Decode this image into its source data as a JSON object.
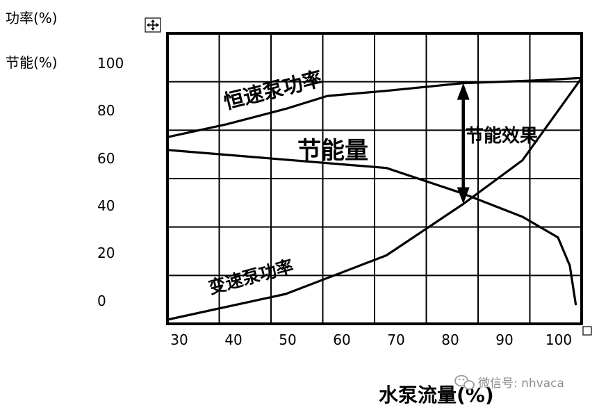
{
  "labels": {
    "power_axis": "功率(%)",
    "saving_axis": "节能(%)",
    "x_axis": "水泵流量(%)",
    "watermark": "微信号: nhvaca"
  },
  "chart_data": {
    "type": "line",
    "xlabel": "水泵流量(%)",
    "ylabel": "功率(%)",
    "ylabel2": "节能(%)",
    "x_ticks": [
      "30",
      "40",
      "50",
      "60",
      "70",
      "80",
      "90",
      "100"
    ],
    "y_ticks": [
      "100",
      "80",
      "60",
      "40",
      "20",
      "0"
    ],
    "xlim": [
      30,
      100
    ],
    "ylim": [
      0,
      100
    ],
    "grid": true,
    "series": [
      {
        "name": "恒速泵功率",
        "points": [
          [
            30,
            71
          ],
          [
            40,
            76
          ],
          [
            50,
            82
          ],
          [
            57,
            87
          ],
          [
            67,
            89
          ],
          [
            80,
            92
          ],
          [
            92,
            93
          ],
          [
            100,
            94
          ]
        ]
      },
      {
        "name": "变速泵功率",
        "points": [
          [
            30,
            0
          ],
          [
            50,
            10
          ],
          [
            67,
            25
          ],
          [
            80,
            45
          ],
          [
            90,
            62
          ],
          [
            100,
            94
          ]
        ]
      },
      {
        "name": "",
        "points": [
          [
            30,
            66
          ],
          [
            67,
            59
          ],
          [
            80,
            49
          ],
          [
            90,
            40
          ],
          [
            96,
            32
          ],
          [
            98,
            21
          ],
          [
            99,
            6
          ]
        ]
      }
    ],
    "annotations": [
      {
        "text": "恒速泵功率"
      },
      {
        "text": "变速泵功率"
      },
      {
        "text": "节能量"
      },
      {
        "text": "节能效果"
      }
    ],
    "arrow": {
      "x": 80,
      "y_from": 92,
      "y_to": 45
    }
  }
}
